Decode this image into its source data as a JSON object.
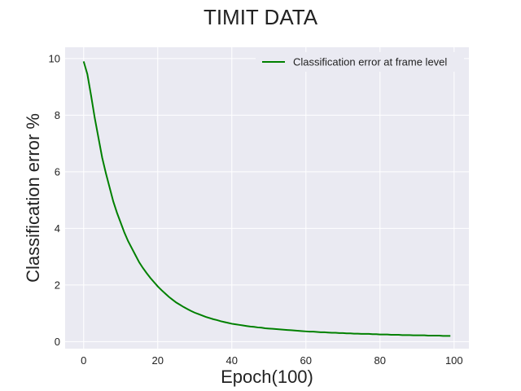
{
  "chart_data": {
    "type": "line",
    "title": "TIMIT DATA",
    "xlabel": "Epoch(100)",
    "ylabel": "Classification error %",
    "xlim": [
      -5,
      104
    ],
    "ylim": [
      -0.25,
      10.4
    ],
    "xticks": [
      0,
      20,
      40,
      60,
      80,
      100
    ],
    "yticks": [
      0,
      2,
      4,
      6,
      8,
      10
    ],
    "grid": true,
    "legend_position": "top-right",
    "colors": {
      "background": "#eaeaf2",
      "grid": "#ffffff",
      "line": "#008000"
    },
    "series": [
      {
        "name": "Classification error at frame level",
        "x": [
          0,
          1,
          2,
          3,
          4,
          5,
          6,
          7,
          8,
          9,
          10,
          11,
          12,
          13,
          14,
          15,
          16,
          17,
          18,
          19,
          20,
          21,
          22,
          23,
          24,
          25,
          26,
          27,
          28,
          29,
          30,
          31,
          32,
          33,
          34,
          35,
          36,
          37,
          38,
          39,
          40,
          41,
          42,
          43,
          44,
          45,
          46,
          47,
          48,
          49,
          50,
          51,
          52,
          53,
          54,
          55,
          56,
          57,
          58,
          59,
          60,
          61,
          62,
          63,
          64,
          65,
          66,
          67,
          68,
          69,
          70,
          71,
          72,
          73,
          74,
          75,
          76,
          77,
          78,
          79,
          80,
          81,
          82,
          83,
          84,
          85,
          86,
          87,
          88,
          89,
          90,
          91,
          92,
          93,
          94,
          95,
          96,
          97,
          98,
          99
        ],
        "values": [
          9.9,
          9.45,
          8.7,
          7.9,
          7.2,
          6.5,
          5.95,
          5.45,
          4.95,
          4.55,
          4.2,
          3.85,
          3.55,
          3.3,
          3.05,
          2.8,
          2.6,
          2.42,
          2.25,
          2.1,
          1.95,
          1.82,
          1.7,
          1.58,
          1.48,
          1.38,
          1.3,
          1.22,
          1.15,
          1.08,
          1.02,
          0.97,
          0.92,
          0.87,
          0.83,
          0.79,
          0.76,
          0.72,
          0.69,
          0.66,
          0.63,
          0.61,
          0.59,
          0.57,
          0.55,
          0.53,
          0.52,
          0.5,
          0.49,
          0.47,
          0.46,
          0.45,
          0.44,
          0.43,
          0.42,
          0.41,
          0.4,
          0.39,
          0.38,
          0.37,
          0.36,
          0.35,
          0.35,
          0.34,
          0.33,
          0.33,
          0.32,
          0.31,
          0.31,
          0.3,
          0.3,
          0.29,
          0.29,
          0.28,
          0.28,
          0.27,
          0.27,
          0.27,
          0.26,
          0.26,
          0.25,
          0.25,
          0.25,
          0.24,
          0.24,
          0.24,
          0.23,
          0.23,
          0.23,
          0.22,
          0.22,
          0.22,
          0.22,
          0.21,
          0.21,
          0.21,
          0.21,
          0.2,
          0.2,
          0.2
        ]
      }
    ]
  }
}
